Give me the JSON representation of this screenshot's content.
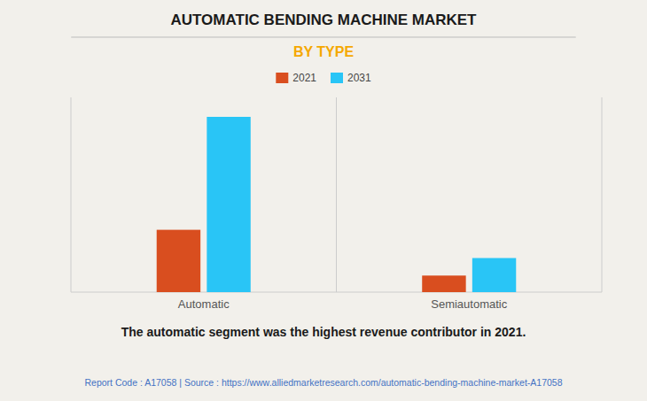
{
  "chart_data": {
    "type": "bar",
    "title": "AUTOMATIC BENDING MACHINE MARKET",
    "subtitle": "BY TYPE",
    "categories": [
      "Automatic",
      "Semiautomatic"
    ],
    "series": [
      {
        "name": "2021",
        "color": "#D94E1F",
        "values": [
          3.2,
          0.85
        ]
      },
      {
        "name": "2031",
        "color": "#29C5F6",
        "values": [
          9.0,
          1.75
        ]
      }
    ],
    "ylim": [
      0,
      10
    ],
    "yticks": [],
    "grid": false,
    "tick_labels": "x",
    "legend": "top",
    "annotations": [
      "The automatic segment was the highest revenue contributor in 2021.",
      "Report Code : A17058  |  Source : https://www.alliedmarketresearch.com/automatic-bending-machine-market-A17058"
    ]
  }
}
